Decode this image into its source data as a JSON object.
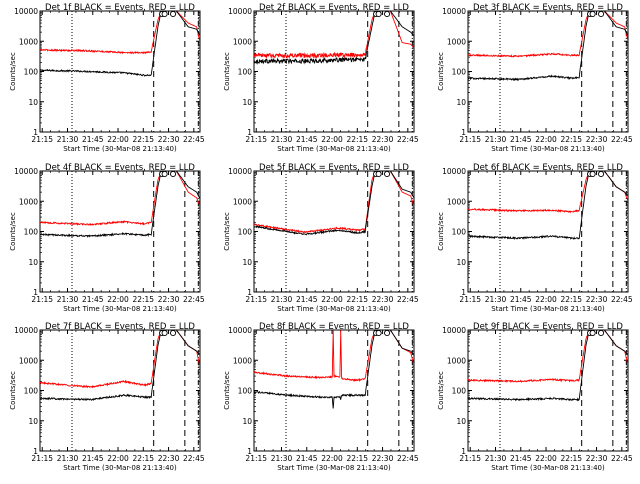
{
  "figure": {
    "background": "#ffffff",
    "axis_color": "#000000",
    "series_colors": {
      "events": "#000000",
      "lld": "#ff0000"
    }
  },
  "chart_data": [
    {
      "type": "line",
      "title": "Det 1f BLACK = Events, RED = LLD",
      "xlabel": "Start Time (30-Mar-08 21:13:40)",
      "ylabel": "Counts/sec",
      "yscale": "log",
      "ylim": [
        1,
        10000
      ],
      "x_ticks": [
        "21:15",
        "21:30",
        "21:45",
        "22:00",
        "22:15",
        "22:30",
        "22:45"
      ],
      "y_ticks": [
        "1",
        "10",
        "100",
        "1000",
        "10000"
      ],
      "grid": false,
      "series": [
        {
          "name": "Events",
          "color": "#000000",
          "shape": "smooth",
          "x": [
            0,
            30,
            50,
            62,
            66,
            70,
            72,
            74,
            76,
            78,
            81,
            88,
            93,
            95
          ],
          "y": [
            110,
            100,
            90,
            75,
            75,
            3000,
            10000,
            10000,
            10000,
            10000,
            10000,
            3000,
            2500,
            1500
          ]
        },
        {
          "name": "LLD",
          "color": "#ff0000",
          "shape": "smooth",
          "x": [
            0,
            30,
            50,
            62,
            66,
            70,
            72,
            74,
            76,
            78,
            81,
            88,
            93,
            95
          ],
          "y": [
            520,
            480,
            420,
            420,
            450,
            5000,
            10000,
            10000,
            10000,
            10000,
            10000,
            4000,
            3000,
            900
          ]
        }
      ]
    },
    {
      "type": "line",
      "title": "Det 2f BLACK = Events, RED = LLD",
      "xlabel": "Start Time (30-Mar-08 21:13:40)",
      "ylabel": "Counts/sec",
      "yscale": "log",
      "ylim": [
        1,
        10000
      ],
      "x_ticks": [
        "21:15",
        "21:30",
        "21:45",
        "22:00",
        "22:15",
        "22:30",
        "22:45"
      ],
      "y_ticks": [
        "1",
        "10",
        "100",
        "1000",
        "10000"
      ],
      "grid": false,
      "series": [
        {
          "name": "Events",
          "color": "#000000",
          "shape": "noisy",
          "x": [
            0,
            30,
            50,
            62,
            66,
            70,
            72,
            74,
            76,
            78,
            81,
            88,
            93,
            95
          ],
          "y": [
            220,
            220,
            240,
            250,
            250,
            3000,
            10000,
            10000,
            10000,
            10000,
            10000,
            3000,
            2000,
            1500
          ]
        },
        {
          "name": "LLD",
          "color": "#ff0000",
          "shape": "noisy",
          "x": [
            0,
            30,
            50,
            62,
            66,
            70,
            72,
            74,
            76,
            78,
            81,
            88,
            93,
            95
          ],
          "y": [
            340,
            330,
            350,
            360,
            360,
            5000,
            10000,
            10000,
            10000,
            10000,
            10000,
            900,
            800,
            600
          ]
        }
      ]
    },
    {
      "type": "line",
      "title": "Det 3f BLACK = Events, RED = LLD",
      "xlabel": "Start Time (30-Mar-08 21:13:40)",
      "ylabel": "Counts/sec",
      "yscale": "log",
      "ylim": [
        1,
        10000
      ],
      "x_ticks": [
        "21:15",
        "21:30",
        "21:45",
        "22:00",
        "22:15",
        "22:30",
        "22:45"
      ],
      "y_ticks": [
        "1",
        "10",
        "100",
        "1000",
        "10000"
      ],
      "grid": false,
      "series": [
        {
          "name": "Events",
          "color": "#000000",
          "shape": "smooth",
          "x": [
            0,
            30,
            50,
            62,
            66,
            70,
            72,
            74,
            76,
            78,
            81,
            88,
            93,
            95
          ],
          "y": [
            60,
            55,
            70,
            60,
            65,
            3000,
            10000,
            10000,
            10000,
            10000,
            10000,
            3000,
            2500,
            1500
          ]
        },
        {
          "name": "LLD",
          "color": "#ff0000",
          "shape": "smooth",
          "x": [
            0,
            30,
            50,
            62,
            66,
            70,
            72,
            74,
            76,
            78,
            81,
            88,
            93,
            95
          ],
          "y": [
            350,
            320,
            380,
            340,
            350,
            5000,
            10000,
            10000,
            10000,
            10000,
            10000,
            4000,
            3000,
            1000
          ]
        }
      ]
    },
    {
      "type": "line",
      "title": "Det 4f BLACK = Events, RED = LLD",
      "xlabel": "Start Time (30-Mar-08 21:13:40)",
      "ylabel": "Counts/sec",
      "yscale": "log",
      "ylim": [
        1,
        10000
      ],
      "x_ticks": [
        "21:15",
        "21:30",
        "21:45",
        "22:00",
        "22:15",
        "22:30",
        "22:45"
      ],
      "y_ticks": [
        "1",
        "10",
        "100",
        "1000",
        "10000"
      ],
      "grid": false,
      "series": [
        {
          "name": "Events",
          "color": "#000000",
          "shape": "smooth",
          "x": [
            0,
            30,
            50,
            62,
            66,
            70,
            72,
            74,
            76,
            78,
            81,
            88,
            93,
            95
          ],
          "y": [
            80,
            70,
            85,
            75,
            80,
            3000,
            10000,
            10000,
            10000,
            10000,
            10000,
            3000,
            2000,
            1200
          ]
        },
        {
          "name": "LLD",
          "color": "#ff0000",
          "shape": "smooth",
          "x": [
            0,
            30,
            50,
            62,
            66,
            70,
            72,
            74,
            76,
            78,
            81,
            88,
            93,
            95
          ],
          "y": [
            200,
            170,
            210,
            180,
            200,
            5000,
            10000,
            10000,
            10000,
            10000,
            10000,
            2000,
            1300,
            700
          ]
        }
      ]
    },
    {
      "type": "line",
      "title": "Det 5f BLACK = Events, RED = LLD",
      "xlabel": "Start Time (30-Mar-08 21:13:40)",
      "ylabel": "Counts/sec",
      "yscale": "log",
      "ylim": [
        1,
        10000
      ],
      "x_ticks": [
        "21:15",
        "21:30",
        "21:45",
        "22:00",
        "22:15",
        "22:30",
        "22:45"
      ],
      "y_ticks": [
        "1",
        "10",
        "100",
        "1000",
        "10000"
      ],
      "grid": false,
      "series": [
        {
          "name": "Events",
          "color": "#000000",
          "shape": "smooth",
          "x": [
            0,
            30,
            50,
            62,
            66,
            70,
            72,
            74,
            76,
            78,
            81,
            88,
            93,
            95
          ],
          "y": [
            150,
            80,
            110,
            90,
            100,
            3000,
            10000,
            10000,
            10000,
            10000,
            10000,
            2500,
            2000,
            1300
          ]
        },
        {
          "name": "LLD",
          "color": "#ff0000",
          "shape": "smooth",
          "x": [
            0,
            30,
            50,
            62,
            66,
            70,
            72,
            74,
            76,
            78,
            81,
            88,
            93,
            95
          ],
          "y": [
            170,
            95,
            130,
            110,
            120,
            5000,
            10000,
            10000,
            10000,
            10000,
            10000,
            2000,
            1500,
            700
          ]
        }
      ]
    },
    {
      "type": "line",
      "title": "Det 6f BLACK = Events, RED = LLD",
      "xlabel": "Start Time (30-Mar-08 21:13:40)",
      "ylabel": "Counts/sec",
      "yscale": "log",
      "ylim": [
        1,
        10000
      ],
      "x_ticks": [
        "21:15",
        "21:30",
        "21:45",
        "22:00",
        "22:15",
        "22:30",
        "22:45"
      ],
      "y_ticks": [
        "1",
        "10",
        "100",
        "1000",
        "10000"
      ],
      "grid": false,
      "series": [
        {
          "name": "Events",
          "color": "#000000",
          "shape": "smooth",
          "x": [
            0,
            30,
            50,
            62,
            66,
            70,
            72,
            74,
            76,
            78,
            81,
            88,
            93,
            95
          ],
          "y": [
            70,
            60,
            70,
            60,
            60,
            3000,
            10000,
            10000,
            10000,
            10000,
            10000,
            3000,
            2000,
            1500
          ]
        },
        {
          "name": "LLD",
          "color": "#ff0000",
          "shape": "smooth",
          "x": [
            0,
            30,
            50,
            62,
            66,
            70,
            72,
            74,
            76,
            78,
            81,
            88,
            93,
            95
          ],
          "y": [
            550,
            480,
            500,
            450,
            500,
            5000,
            10000,
            10000,
            10000,
            10000,
            10000,
            3000,
            2000,
            1000
          ]
        }
      ]
    },
    {
      "type": "line",
      "title": "Det 7f BLACK = Events, RED = LLD",
      "xlabel": "Start Time (30-Mar-08 21:13:40)",
      "ylabel": "Counts/sec",
      "yscale": "log",
      "ylim": [
        1,
        10000
      ],
      "x_ticks": [
        "21:15",
        "21:30",
        "21:45",
        "22:00",
        "22:15",
        "22:30",
        "22:45"
      ],
      "y_ticks": [
        "1",
        "10",
        "100",
        "1000",
        "10000"
      ],
      "grid": false,
      "series": [
        {
          "name": "Events",
          "color": "#000000",
          "shape": "smooth",
          "x": [
            0,
            30,
            50,
            62,
            66,
            70,
            72,
            74,
            76,
            78,
            81,
            88,
            93,
            95
          ],
          "y": [
            55,
            50,
            70,
            60,
            60,
            3000,
            10000,
            10000,
            10000,
            10000,
            10000,
            3000,
            2000,
            1500
          ]
        },
        {
          "name": "LLD",
          "color": "#ff0000",
          "shape": "smooth",
          "x": [
            0,
            30,
            50,
            62,
            66,
            70,
            72,
            74,
            76,
            78,
            81,
            88,
            93,
            95
          ],
          "y": [
            180,
            130,
            200,
            150,
            170,
            5000,
            10000,
            10000,
            10000,
            10000,
            10000,
            3000,
            2000,
            600
          ]
        }
      ]
    },
    {
      "type": "line",
      "title": "Det 8f BLACK = Events, RED = LLD",
      "xlabel": "Start Time (30-Mar-08 21:13:40)",
      "ylabel": "Counts/sec",
      "yscale": "log",
      "ylim": [
        1,
        10000
      ],
      "x_ticks": [
        "21:15",
        "21:30",
        "21:45",
        "22:00",
        "22:15",
        "22:30",
        "22:45"
      ],
      "y_ticks": [
        "1",
        "10",
        "100",
        "1000",
        "10000"
      ],
      "grid": false,
      "series": [
        {
          "name": "Events",
          "color": "#000000",
          "shape": "smooth",
          "x": [
            0,
            20,
            30,
            40,
            46.5,
            47,
            47.5,
            51,
            51.5,
            52,
            60,
            62,
            66,
            70,
            72,
            74,
            76,
            78,
            81,
            88,
            93,
            95
          ],
          "y": [
            90,
            70,
            65,
            60,
            60,
            25,
            60,
            60,
            50,
            70,
            70,
            70,
            70,
            3000,
            10000,
            10000,
            10000,
            10000,
            10000,
            2500,
            2000,
            1500
          ]
        },
        {
          "name": "LLD",
          "color": "#ff0000",
          "shape": "smooth",
          "x": [
            0,
            20,
            30,
            40,
            46.5,
            47,
            47.5,
            51,
            51.5,
            52,
            60,
            62,
            66,
            70,
            72,
            74,
            76,
            78,
            81,
            88,
            93,
            95
          ],
          "y": [
            400,
            300,
            280,
            270,
            280,
            10000,
            300,
            280,
            10000,
            250,
            220,
            220,
            250,
            5000,
            10000,
            10000,
            10000,
            10000,
            10000,
            2500,
            1800,
            700
          ]
        }
      ]
    },
    {
      "type": "line",
      "title": "Det 9f BLACK = Events, RED = LLD",
      "xlabel": "Start Time (30-Mar-08 21:13:40)",
      "ylabel": "Counts/sec",
      "yscale": "log",
      "ylim": [
        1,
        10000
      ],
      "x_ticks": [
        "21:15",
        "21:30",
        "21:45",
        "22:00",
        "22:15",
        "22:30",
        "22:45"
      ],
      "y_ticks": [
        "1",
        "10",
        "100",
        "1000",
        "10000"
      ],
      "grid": false,
      "series": [
        {
          "name": "Events",
          "color": "#000000",
          "shape": "smooth",
          "x": [
            0,
            30,
            50,
            62,
            66,
            70,
            72,
            74,
            76,
            78,
            81,
            88,
            93,
            95
          ],
          "y": [
            55,
            50,
            55,
            50,
            50,
            3000,
            10000,
            10000,
            10000,
            10000,
            10000,
            3000,
            2000,
            1500
          ]
        },
        {
          "name": "LLD",
          "color": "#ff0000",
          "shape": "smooth",
          "x": [
            0,
            30,
            50,
            62,
            66,
            70,
            72,
            74,
            76,
            78,
            81,
            88,
            93,
            95
          ],
          "y": [
            220,
            200,
            230,
            210,
            220,
            5000,
            10000,
            10000,
            10000,
            10000,
            10000,
            3000,
            2000,
            700
          ]
        }
      ]
    }
  ]
}
